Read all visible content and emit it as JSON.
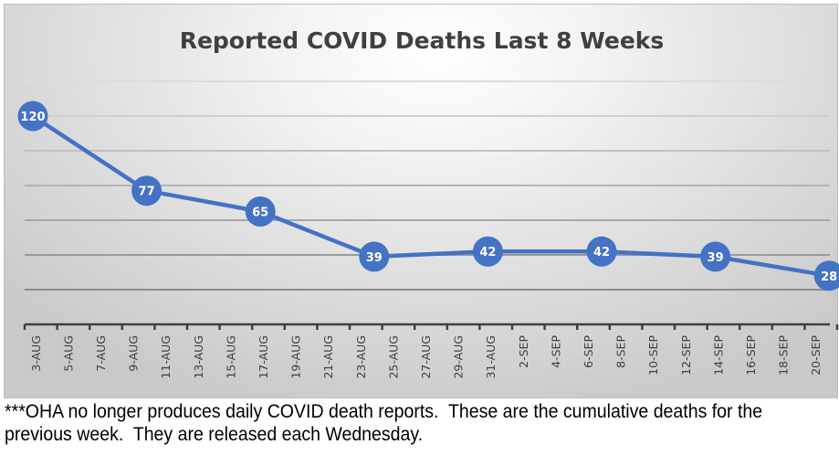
{
  "chart_data": {
    "type": "line",
    "title": "Reported COVID Deaths Last 8 Weeks",
    "xlabel": "",
    "ylabel": "",
    "ylim": [
      0,
      140
    ],
    "y_gridlines": [
      20,
      40,
      60,
      80,
      100,
      120,
      140
    ],
    "grid": true,
    "y_axis_labels_visible": false,
    "legend": "none",
    "x_tick_labels": [
      "3-AUG",
      "5-AUG",
      "7-AUG",
      "9-AUG",
      "11-AUG",
      "13-AUG",
      "15-AUG",
      "17-AUG",
      "19-AUG",
      "21-AUG",
      "23-AUG",
      "25-AUG",
      "27-AUG",
      "29-AUG",
      "31-AUG",
      "2-SEP",
      "4-SEP",
      "6-SEP",
      "8-SEP",
      "10-SEP",
      "12-SEP",
      "14-SEP",
      "16-SEP",
      "18-SEP",
      "20-SEP"
    ],
    "x_range_days": [
      0,
      48
    ],
    "series": [
      {
        "name": "Reported COVID Deaths",
        "color": "#4472c4",
        "x": [
          "3-AUG",
          "10-AUG",
          "17-AUG",
          "24-AUG",
          "31-AUG",
          "7-SEP",
          "14-SEP",
          "21-SEP"
        ],
        "x_days": [
          0,
          7,
          14,
          21,
          28,
          35,
          42,
          49
        ],
        "values": [
          120,
          77,
          65,
          39,
          42,
          42,
          39,
          28
        ],
        "data_labels": [
          "120",
          "77",
          "65",
          "39",
          "42",
          "42",
          "39",
          "28"
        ]
      }
    ]
  },
  "footnote": "***OHA no longer produces daily COVID death reports.  These are the cumulative deaths for the previous week.  They are released each Wednesday."
}
